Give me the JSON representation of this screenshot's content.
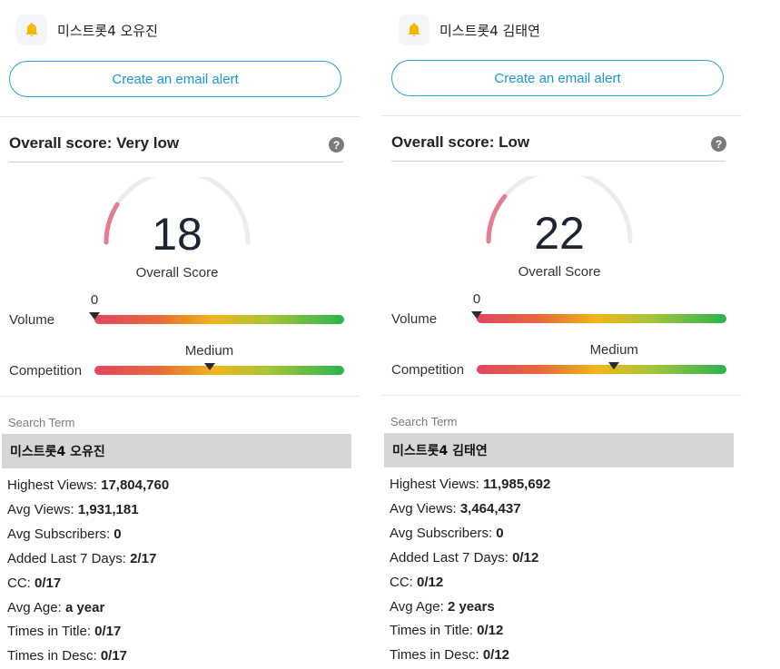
{
  "panels": [
    {
      "keyword": "미스트롯4 오유진",
      "alert_button": "Create an email alert",
      "overall_heading": "Overall score: Very low",
      "help_icon": "question-circle-icon",
      "score": "18",
      "score_value": 18,
      "score_caption": "Overall Score",
      "volume_label": "Volume",
      "volume_value": "0",
      "volume_fraction": 0.0,
      "competition_label": "Competition",
      "competition_value": "Medium",
      "competition_fraction": 0.46,
      "search_term_label": "Search Term",
      "search_term": "미스트롯4 오유진",
      "stats": [
        {
          "label": "Highest Views:",
          "value": "17,804,760"
        },
        {
          "label": "Avg Views:",
          "value": "1,931,181"
        },
        {
          "label": "Avg Subscribers:",
          "value": "0"
        },
        {
          "label": "Added Last 7 Days:",
          "value": "2/17"
        },
        {
          "label": "CC:",
          "value": "0/17"
        },
        {
          "label": "Avg Age:",
          "value": "a year"
        },
        {
          "label": "Times in Title:",
          "value": "0/17"
        },
        {
          "label": "Times in Desc:",
          "value": "0/17"
        }
      ]
    },
    {
      "keyword": "미스트롯4 김태연",
      "alert_button": "Create an email alert",
      "overall_heading": "Overall score: Low",
      "help_icon": "question-circle-icon",
      "score": "22",
      "score_value": 22,
      "score_caption": "Overall Score",
      "volume_label": "Volume",
      "volume_value": "0",
      "volume_fraction": 0.0,
      "competition_label": "Competition",
      "competition_value": "Medium",
      "competition_fraction": 0.55,
      "search_term_label": "Search Term",
      "search_term": "미스트롯4 김태연",
      "stats": [
        {
          "label": "Highest Views:",
          "value": "11,985,692"
        },
        {
          "label": "Avg Views:",
          "value": "3,464,437"
        },
        {
          "label": "Avg Subscribers:",
          "value": "0"
        },
        {
          "label": "Added Last 7 Days:",
          "value": "0/12"
        },
        {
          "label": "CC:",
          "value": "0/12"
        },
        {
          "label": "Avg Age:",
          "value": "2 years"
        },
        {
          "label": "Times in Title:",
          "value": "0/12"
        },
        {
          "label": "Times in Desc:",
          "value": "0/12"
        }
      ]
    }
  ],
  "colors": {
    "accent": "#1b95d6",
    "bell": "#f5b800",
    "gauge_track": "#ececec",
    "gauge_fill": "#e57c8f",
    "term_row_bg": "#d6d6d6"
  }
}
